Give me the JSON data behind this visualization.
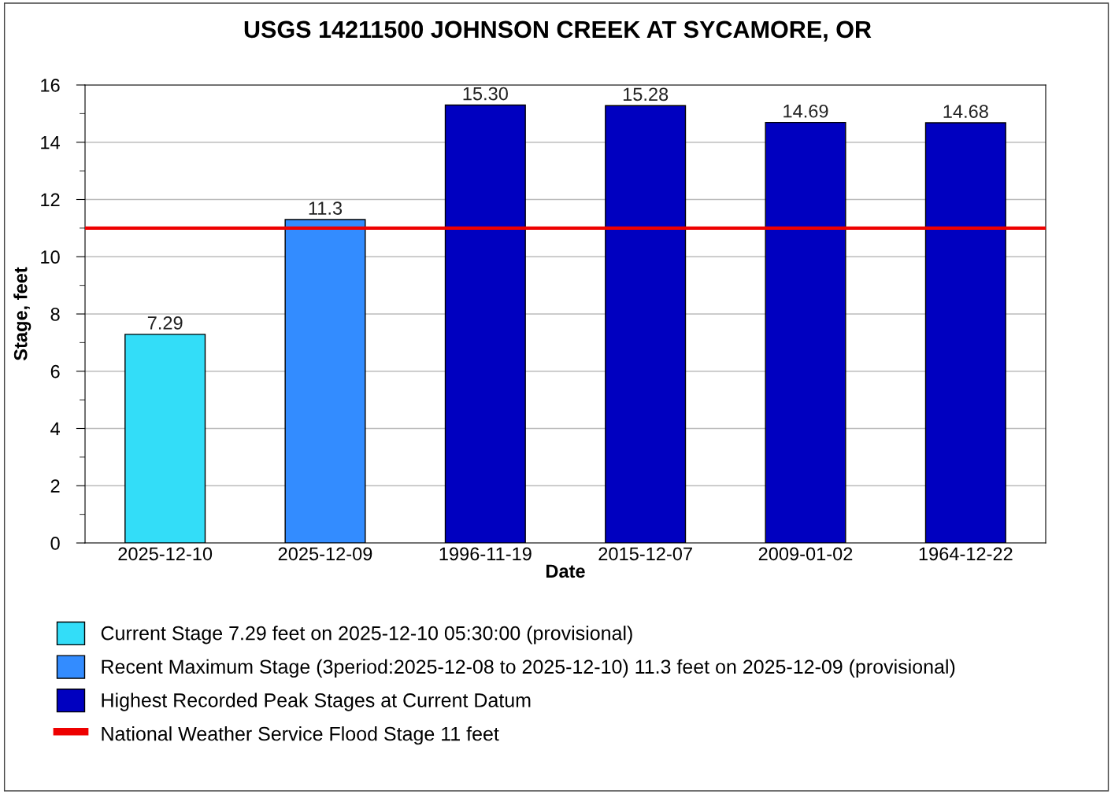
{
  "chart_data": {
    "type": "bar",
    "title": "USGS 14211500 JOHNSON CREEK AT SYCAMORE, OR",
    "xlabel": "Date",
    "ylabel": "Stage, feet",
    "categories": [
      "2025-12-10",
      "2025-12-09",
      "1996-11-19",
      "2015-12-07",
      "2009-01-02",
      "1964-12-22"
    ],
    "series": [
      {
        "name": "Current Stage 7.29 feet on 2025-12-10 05:30:00 (provisional)",
        "color": "#33ddf8",
        "values": [
          7.29,
          null,
          null,
          null,
          null,
          null
        ],
        "value_labels": [
          "7.29",
          null,
          null,
          null,
          null,
          null
        ]
      },
      {
        "name": "Recent Maximum Stage (3period:2025-12-08 to 2025-12-10) 11.3 feet on 2025-12-09 (provisional)",
        "color": "#338cff",
        "values": [
          null,
          11.3,
          null,
          null,
          null,
          null
        ],
        "value_labels": [
          null,
          "11.3",
          null,
          null,
          null,
          null
        ]
      },
      {
        "name": "Highest Recorded Peak Stages at Current Datum",
        "color": "#0000c0",
        "values": [
          null,
          null,
          15.3,
          15.28,
          14.69,
          14.68
        ],
        "value_labels": [
          null,
          null,
          "15.30",
          "15.28",
          "14.69",
          "14.68"
        ]
      }
    ],
    "ref_lines": [
      {
        "axis": "y",
        "value": 11,
        "label": "National Weather Service Flood Stage 11 feet",
        "color": "#ee0000"
      }
    ],
    "ylim": [
      0,
      16
    ],
    "yticks": [
      0,
      {
        "value": 1,
        "label": null
      },
      2,
      {
        "value": 3,
        "label": null
      },
      4,
      {
        "value": 5,
        "label": null
      },
      6,
      {
        "value": 7,
        "label": null
      },
      8,
      {
        "value": 9,
        "label": null
      },
      10,
      {
        "value": 11,
        "label": null
      },
      12,
      {
        "value": 13,
        "label": null
      },
      14,
      {
        "value": 15,
        "label": null
      },
      16
    ],
    "grid": "y",
    "legend": "bottom"
  }
}
